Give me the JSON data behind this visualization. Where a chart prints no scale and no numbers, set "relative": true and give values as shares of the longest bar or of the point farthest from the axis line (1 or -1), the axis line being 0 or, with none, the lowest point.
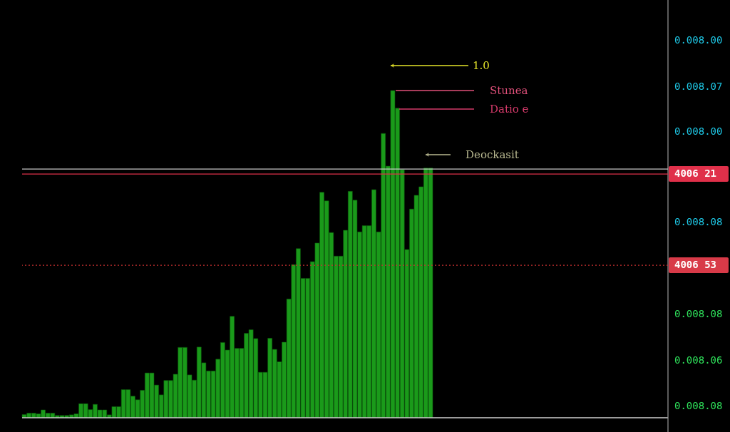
{
  "chart_data": {
    "type": "bar",
    "relative": true,
    "color": "#1a9a1a",
    "categories": [
      null,
      null,
      null,
      null,
      null,
      null,
      null,
      null,
      null,
      null,
      null,
      null,
      null,
      null,
      null,
      null,
      null,
      null,
      null,
      null,
      null,
      null,
      null,
      null,
      null,
      null,
      null,
      null,
      null,
      null,
      null,
      null,
      null,
      null,
      null,
      null,
      null,
      null,
      null,
      null,
      null,
      null,
      null,
      null,
      null,
      null,
      null,
      null,
      null,
      null,
      null,
      null,
      null,
      null,
      null,
      null,
      null,
      null,
      null,
      null,
      null,
      null,
      null,
      null,
      null,
      null,
      null,
      null,
      null,
      null,
      null,
      null,
      null,
      null,
      null,
      null,
      null,
      null,
      null,
      null,
      null,
      null,
      null,
      null,
      null,
      null,
      null
    ],
    "values": [
      0.01,
      0.014,
      0.014,
      0.012,
      0.024,
      0.014,
      0.014,
      0.007,
      0.007,
      0.007,
      0.009,
      0.012,
      0.043,
      0.043,
      0.025,
      0.041,
      0.024,
      0.024,
      0.009,
      0.034,
      0.034,
      0.086,
      0.086,
      0.066,
      0.055,
      0.084,
      0.137,
      0.137,
      0.1,
      0.07,
      0.114,
      0.114,
      0.133,
      0.215,
      0.215,
      0.131,
      0.115,
      0.216,
      0.168,
      0.143,
      0.143,
      0.179,
      0.23,
      0.207,
      0.31,
      0.212,
      0.212,
      0.258,
      0.269,
      0.242,
      0.139,
      0.139,
      0.243,
      0.209,
      0.171,
      0.231,
      0.363,
      0.468,
      0.517,
      0.426,
      0.426,
      0.477,
      0.534,
      0.689,
      0.663,
      0.566,
      0.494,
      0.494,
      0.573,
      0.692,
      0.665,
      0.568,
      0.587,
      0.587,
      0.697,
      0.568,
      0.869,
      0.769,
      1.0,
      0.946,
      0.758,
      0.514,
      0.638,
      0.68,
      0.706,
      0.763,
      0.763
    ],
    "ref_lines": [
      {
        "axis": "y",
        "value": 0.76,
        "color": "#c8c8c8"
      },
      {
        "axis": "y",
        "value": 0.745,
        "color": "#e0304a"
      },
      {
        "axis": "y",
        "value": 0.466,
        "color": "#c83030",
        "line_style": "dotted"
      }
    ],
    "annotations": [
      "1.0",
      "Stunea",
      "Datio e",
      "Deockasit",
      "0.008.00",
      "0.008.07",
      "0.008.00",
      "4006 21",
      "0.008.08",
      "4006 53",
      "0.008.08",
      "0.008.06",
      "0.008.08"
    ]
  }
}
